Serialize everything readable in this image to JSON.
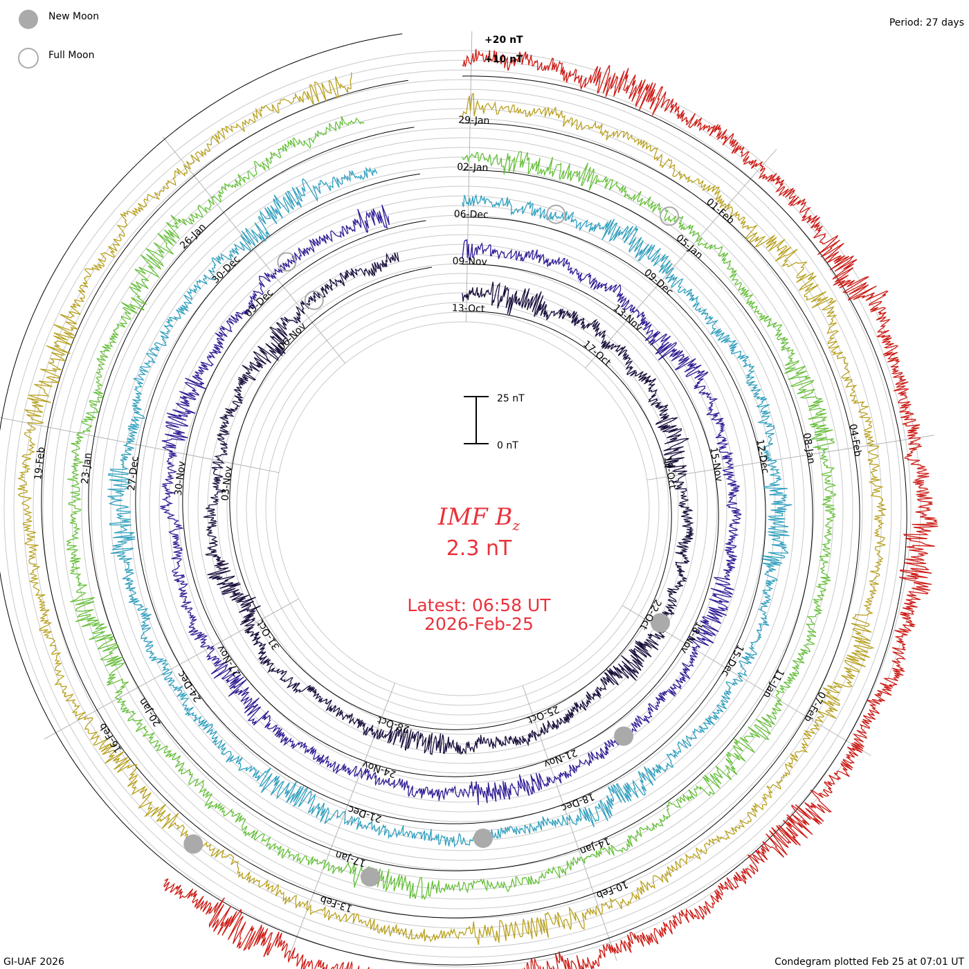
{
  "header": {
    "new_moon_label": "New Moon",
    "full_moon_label": "Full Moon",
    "period": "Period: 27 days"
  },
  "footer": {
    "credit": "GI-UAF 2026",
    "plotted": "Condegram plotted Feb 25 at 07:01 UT"
  },
  "center": {
    "title_main": "IMF B",
    "title_sub": "z",
    "value": "2.3 nT",
    "latest": "Latest: 06:58 UT",
    "date": "2026-Feb-25"
  },
  "scale_bar": {
    "top_label": "25 nT",
    "bottom_label": "0 nT"
  },
  "colors": {
    "moon_fill": "#aaaaaa",
    "grid": "#c8c8c8",
    "spoke": "#b4b4b4",
    "accent": "#e8323c"
  },
  "chart_data": {
    "type": "condegram",
    "quantity": "IMF Bz",
    "units": "nT",
    "period_days": 27,
    "ring_offset_labels": [
      "+20 nT",
      "+10 nT"
    ],
    "rings": [
      {
        "color": "#1a0f3c",
        "labels": [
          "13-Oct",
          "17-Oct",
          "19-Oct",
          "22-Oct",
          "25-Oct",
          "28-Oct",
          "31-Oct",
          "03-Nov",
          "06-Nov"
        ]
      },
      {
        "color": "#2e1b94",
        "labels": [
          "09-Nov",
          "13-Nov",
          "15-Nov",
          "18-Nov",
          "21-Nov",
          "24-Nov",
          "27-Nov",
          "30-Nov",
          "03-Dec"
        ]
      },
      {
        "color": "#2f9fbe",
        "labels": [
          "06-Dec",
          "09-Dec",
          "12-Dec",
          "15-Dec",
          "18-Dec",
          "21-Dec",
          "24-Dec",
          "27-Dec",
          "30-Dec"
        ]
      },
      {
        "color": "#66bf3a",
        "labels": [
          "02-Jan",
          "05-Jan",
          "08-Jan",
          "11-Jan",
          "14-Jan",
          "17-Jan",
          "20-Jan",
          "23-Jan",
          "26-Jan"
        ]
      },
      {
        "color": "#b8a01e",
        "labels": [
          "29-Jan",
          "01-Feb",
          "04-Feb",
          "07-Feb",
          "10-Feb",
          "13-Feb",
          "16-Feb",
          "19-Feb"
        ]
      },
      {
        "color": "#cc1a14",
        "labels": []
      }
    ],
    "moon_phases": [
      {
        "kind": "new",
        "date": "18-Oct"
      },
      {
        "kind": "new",
        "date": "20-Nov"
      },
      {
        "kind": "new",
        "date": "20-Dec"
      },
      {
        "kind": "new",
        "date": "18-Jan"
      },
      {
        "kind": "new",
        "date": "17-Feb"
      },
      {
        "kind": "full",
        "date": "05-Nov"
      },
      {
        "kind": "full",
        "date": "04-Dec"
      },
      {
        "kind": "full",
        "date": "03-Jan"
      },
      {
        "kind": "full",
        "date": "01-Feb"
      }
    ]
  }
}
